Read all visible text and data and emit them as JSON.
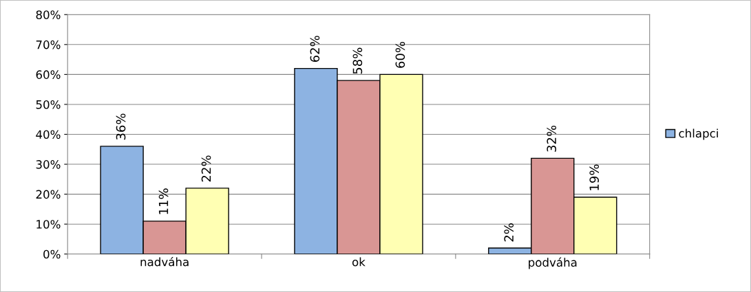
{
  "chart_data": {
    "type": "bar",
    "categories": [
      "nadváha",
      "ok",
      "podváha"
    ],
    "series": [
      {
        "name": "chlapci",
        "color": "#8db3e2",
        "values": [
          36,
          62,
          2
        ],
        "value_labels": [
          "36%",
          "62%",
          "2%"
        ]
      },
      {
        "color": "#d99694",
        "values": [
          11,
          58,
          32
        ],
        "value_labels": [
          "11%",
          "58%",
          "32%"
        ]
      },
      {
        "color": "#ffffb3",
        "values": [
          22,
          60,
          19
        ],
        "value_labels": [
          "22%",
          "60%",
          "19%"
        ]
      }
    ],
    "ylim": [
      0,
      80
    ],
    "yticks": [
      {
        "value": 0,
        "label": "0%"
      },
      {
        "value": 10,
        "label": "10%"
      },
      {
        "value": 20,
        "label": "20%"
      },
      {
        "value": 30,
        "label": "30%"
      },
      {
        "value": 40,
        "label": "40%"
      },
      {
        "value": 50,
        "label": "50%"
      },
      {
        "value": 60,
        "label": "60%"
      },
      {
        "value": 70,
        "label": "70%"
      },
      {
        "value": 80,
        "label": "80%"
      }
    ],
    "grid": "y",
    "legend": "right"
  }
}
